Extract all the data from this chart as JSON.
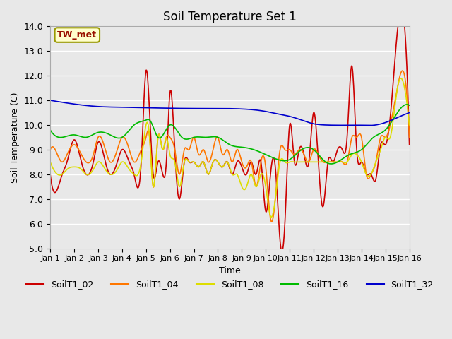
{
  "title": "Soil Temperature Set 1",
  "xlabel": "Time",
  "ylabel": "Soil Temperature (C)",
  "ylim": [
    5.0,
    14.0
  ],
  "yticks": [
    5.0,
    6.0,
    7.0,
    8.0,
    9.0,
    10.0,
    11.0,
    12.0,
    13.0,
    14.0
  ],
  "xtick_labels": [
    "Jan 1",
    "Jan 2",
    "Jan 3",
    "Jan 4",
    "Jan 5",
    "Jan 6",
    "Jan 7",
    "Jan 8",
    "Jan 9",
    "Jan 10",
    "Jan 11",
    "Jan 12",
    "Jan 13",
    "Jan 14",
    "Jan 15",
    "Jan 16"
  ],
  "background_color": "#e8e8e8",
  "plot_bg_color": "#e8e8e8",
  "grid_color": "#ffffff",
  "annotation_text": "TW_met",
  "annotation_color": "#991100",
  "annotation_bg": "#ffffcc",
  "annotation_border": "#999900",
  "series": {
    "SoilT1_02": {
      "color": "#cc0000",
      "keypoints_x": [
        0,
        0.3,
        0.5,
        0.7,
        1.0,
        1.3,
        1.5,
        1.8,
        2.0,
        2.3,
        2.5,
        2.8,
        3.0,
        3.3,
        3.5,
        3.8,
        4.0,
        4.15,
        4.3,
        4.5,
        4.7,
        4.85,
        5.0,
        5.2,
        5.4,
        5.6,
        5.8,
        6.0,
        6.2,
        6.4,
        6.6,
        6.8,
        7.0,
        7.2,
        7.4,
        7.6,
        7.8,
        8.0,
        8.2,
        8.4,
        8.6,
        8.8,
        9.0,
        9.2,
        9.4,
        9.6,
        9.8,
        10.0,
        10.2,
        10.4,
        10.6,
        10.8,
        11.0,
        11.2,
        11.4,
        11.6,
        11.8,
        12.0,
        12.2,
        12.4,
        12.6,
        12.8,
        13.0,
        13.2,
        13.4,
        13.6,
        13.8,
        14.0,
        14.2,
        14.5,
        14.8,
        15.0
      ],
      "keypoints_y": [
        8.0,
        7.4,
        8.0,
        8.5,
        9.4,
        8.5,
        8.0,
        8.5,
        9.3,
        8.5,
        8.0,
        8.5,
        9.0,
        8.5,
        8.0,
        8.5,
        12.2,
        10.5,
        8.0,
        8.5,
        8.0,
        8.5,
        11.3,
        9.0,
        7.0,
        8.5,
        8.5,
        8.5,
        8.3,
        8.5,
        8.0,
        8.5,
        8.5,
        8.3,
        8.5,
        8.0,
        8.5,
        8.3,
        8.0,
        8.5,
        8.0,
        8.5,
        6.5,
        8.0,
        8.3,
        5.3,
        6.0,
        10.0,
        8.5,
        9.0,
        8.8,
        8.5,
        10.5,
        8.5,
        6.7,
        8.5,
        8.5,
        9.0,
        9.0,
        9.5,
        12.4,
        9.0,
        8.5,
        8.0,
        8.0,
        7.8,
        9.2,
        9.2,
        10.3,
        13.8,
        14.0,
        9.2
      ]
    },
    "SoilT1_04": {
      "color": "#ff7700",
      "keypoints_x": [
        0,
        0.3,
        0.5,
        0.7,
        1.0,
        1.3,
        1.5,
        1.8,
        2.0,
        2.3,
        2.5,
        2.8,
        3.0,
        3.3,
        3.5,
        3.8,
        4.0,
        4.15,
        4.3,
        4.5,
        4.7,
        4.85,
        5.0,
        5.2,
        5.4,
        5.6,
        5.8,
        6.0,
        6.2,
        6.4,
        6.6,
        6.8,
        7.0,
        7.2,
        7.4,
        7.6,
        7.8,
        8.0,
        8.2,
        8.4,
        8.6,
        8.8,
        9.0,
        9.2,
        9.4,
        9.6,
        9.8,
        10.0,
        10.2,
        10.4,
        10.6,
        10.8,
        11.0,
        11.2,
        11.4,
        11.6,
        11.8,
        12.0,
        12.2,
        12.4,
        12.6,
        12.8,
        13.0,
        13.2,
        13.4,
        13.6,
        13.8,
        14.0,
        14.2,
        14.5,
        14.8,
        15.0
      ],
      "keypoints_y": [
        9.0,
        8.8,
        8.5,
        8.8,
        9.2,
        8.8,
        8.5,
        8.8,
        9.5,
        9.0,
        8.5,
        9.0,
        9.5,
        9.0,
        8.5,
        9.0,
        9.5,
        9.5,
        7.5,
        9.5,
        9.0,
        9.5,
        9.5,
        9.0,
        8.0,
        9.0,
        9.0,
        9.5,
        8.8,
        9.0,
        8.5,
        9.0,
        9.5,
        8.8,
        9.0,
        8.5,
        9.0,
        8.5,
        8.3,
        8.5,
        7.5,
        8.5,
        8.3,
        6.2,
        7.0,
        9.0,
        9.0,
        9.0,
        8.8,
        9.0,
        8.8,
        8.5,
        9.0,
        8.8,
        8.5,
        8.5,
        8.5,
        8.5,
        8.5,
        8.5,
        9.5,
        9.5,
        9.5,
        8.0,
        8.0,
        8.5,
        9.5,
        9.5,
        10.0,
        11.5,
        12.0,
        9.5
      ]
    },
    "SoilT1_08": {
      "color": "#dddd00",
      "keypoints_x": [
        0,
        0.3,
        0.5,
        0.7,
        1.0,
        1.3,
        1.5,
        1.8,
        2.0,
        2.3,
        2.5,
        2.8,
        3.0,
        3.3,
        3.5,
        3.8,
        4.0,
        4.15,
        4.3,
        4.5,
        4.7,
        4.85,
        5.0,
        5.2,
        5.4,
        5.6,
        5.8,
        6.0,
        6.2,
        6.4,
        6.6,
        6.8,
        7.0,
        7.2,
        7.4,
        7.6,
        7.8,
        8.0,
        8.2,
        8.4,
        8.6,
        8.8,
        9.0,
        9.2,
        9.4,
        9.6,
        9.8,
        10.0,
        10.2,
        10.4,
        10.6,
        10.8,
        11.0,
        11.2,
        11.4,
        11.6,
        11.8,
        12.0,
        12.2,
        12.4,
        12.6,
        12.8,
        13.0,
        13.2,
        13.4,
        13.6,
        13.8,
        14.0,
        14.2,
        14.5,
        14.8,
        15.0
      ],
      "keypoints_y": [
        8.5,
        8.0,
        8.0,
        8.2,
        8.3,
        8.2,
        8.0,
        8.2,
        8.5,
        8.2,
        8.0,
        8.2,
        8.5,
        8.2,
        8.0,
        8.5,
        10.0,
        9.5,
        7.5,
        9.5,
        9.0,
        9.5,
        8.8,
        8.5,
        7.5,
        8.5,
        8.5,
        8.5,
        8.3,
        8.5,
        8.0,
        8.5,
        8.5,
        8.3,
        8.5,
        8.0,
        8.0,
        7.5,
        7.5,
        8.0,
        7.5,
        8.0,
        7.5,
        6.3,
        7.0,
        8.5,
        8.5,
        8.5,
        8.5,
        8.5,
        8.5,
        8.5,
        8.5,
        8.5,
        8.5,
        8.5,
        8.5,
        8.5,
        8.5,
        8.5,
        8.8,
        8.8,
        8.5,
        8.0,
        8.0,
        8.5,
        9.0,
        9.5,
        9.5,
        11.5,
        11.5,
        10.0
      ]
    },
    "SoilT1_16": {
      "color": "#00bb00",
      "keypoints_x": [
        0,
        0.5,
        1.0,
        1.5,
        2.0,
        2.5,
        3.0,
        3.5,
        4.0,
        4.15,
        4.5,
        5.0,
        5.5,
        6.0,
        6.5,
        7.0,
        7.5,
        8.0,
        8.5,
        9.0,
        9.5,
        10.0,
        10.5,
        11.0,
        11.5,
        12.0,
        12.5,
        13.0,
        13.5,
        14.0,
        14.5,
        15.0
      ],
      "keypoints_y": [
        9.8,
        9.5,
        9.6,
        9.5,
        9.7,
        9.6,
        9.5,
        10.0,
        10.2,
        10.2,
        9.5,
        10.0,
        9.5,
        9.5,
        9.5,
        9.5,
        9.2,
        9.1,
        9.0,
        8.8,
        8.6,
        8.6,
        9.0,
        9.0,
        8.5,
        8.5,
        8.8,
        9.0,
        9.5,
        9.8,
        10.5,
        10.8
      ]
    },
    "SoilT1_32": {
      "color": "#0000cc",
      "keypoints_x": [
        0,
        1.0,
        2.0,
        3.0,
        4.0,
        5.0,
        6.0,
        7.0,
        8.0,
        9.0,
        9.5,
        10.0,
        10.5,
        11.0,
        11.5,
        12.0,
        12.5,
        13.0,
        13.5,
        14.0,
        14.5,
        15.0
      ],
      "keypoints_y": [
        11.0,
        10.85,
        10.75,
        10.72,
        10.7,
        10.68,
        10.67,
        10.67,
        10.65,
        10.55,
        10.45,
        10.35,
        10.2,
        10.05,
        10.0,
        9.99,
        9.99,
        9.99,
        9.99,
        10.1,
        10.3,
        10.5
      ]
    }
  },
  "days": 15,
  "legend_entries": [
    "SoilT1_02",
    "SoilT1_04",
    "SoilT1_08",
    "SoilT1_16",
    "SoilT1_32"
  ],
  "legend_colors": [
    "#cc0000",
    "#ff7700",
    "#dddd00",
    "#00bb00",
    "#0000cc"
  ]
}
